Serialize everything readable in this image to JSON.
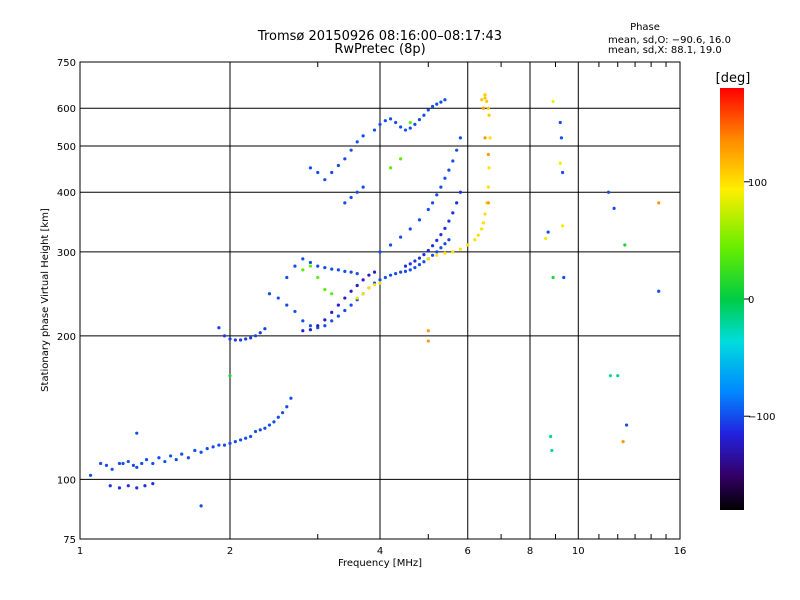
{
  "chart_data": {
    "type": "scatter",
    "title": "Tromsø 20150926 08:16:00–08:17:43",
    "subtitle": "RwPretec (8p)",
    "xlabel": "Frequency [MHz]",
    "ylabel": "Stationary phase Virtual Height [km]",
    "x_scale": "log",
    "y_scale": "log",
    "xlim": [
      1,
      16
    ],
    "ylim": [
      75,
      750
    ],
    "x_ticks": [
      1,
      2,
      4,
      6,
      8,
      10,
      16
    ],
    "y_ticks": [
      75,
      100,
      200,
      300,
      400,
      500,
      600,
      750
    ],
    "grid": true,
    "phase_info": {
      "heading": "Phase",
      "line1": "mean, sd,O: −90.6, 16.0",
      "line2": "mean, sd,X:  88.1, 19.0"
    },
    "colorbar": {
      "label": "[deg]",
      "range": [
        -180,
        180
      ],
      "ticks": [
        100,
        0,
        -100
      ],
      "tick_labels": [
        "100",
        "0",
        "−100"
      ]
    },
    "point_groups": [
      {
        "phase": -100,
        "x": [
          1.05,
          1.1,
          1.13,
          1.16,
          1.2,
          1.22,
          1.25,
          1.28,
          1.3,
          1.33,
          1.36,
          1.4,
          1.44,
          1.48,
          1.52,
          1.56,
          1.6,
          1.65,
          1.7,
          1.75,
          1.8,
          1.85,
          1.9,
          1.95,
          2.0,
          2.05,
          2.1,
          2.15,
          2.2,
          2.25,
          2.3,
          2.35,
          2.4,
          2.45,
          2.5,
          2.55,
          2.6,
          2.65
        ],
        "y": [
          102,
          108,
          107,
          105,
          108,
          108,
          109,
          107,
          106,
          108,
          110,
          108,
          111,
          109,
          112,
          110,
          113,
          111,
          115,
          114,
          116,
          117,
          118,
          118,
          119,
          120,
          121,
          122,
          123,
          126,
          127,
          128,
          130,
          132,
          135,
          138,
          142,
          148
        ]
      },
      {
        "phase": -110,
        "x": [
          1.15,
          1.2,
          1.25,
          1.3,
          1.35,
          1.4
        ],
        "y": [
          97,
          96,
          97,
          96,
          97,
          98
        ]
      },
      {
        "phase": -105,
        "x": [
          1.9,
          1.95,
          2.0,
          2.05,
          2.1,
          2.15,
          2.2,
          2.25,
          2.3,
          2.35
        ],
        "y": [
          208,
          200,
          197,
          196,
          196,
          197,
          198,
          200,
          203,
          207
        ]
      },
      {
        "phase": -100,
        "x": [
          2.4,
          2.5,
          2.6,
          2.7,
          2.8,
          2.9,
          3.0,
          3.1,
          3.2,
          3.3,
          3.4,
          3.5,
          3.6,
          3.7,
          3.8,
          3.9,
          4.0,
          4.1,
          4.2,
          4.3,
          4.4,
          4.5,
          4.6,
          4.7,
          4.8,
          4.9,
          5.0,
          5.1,
          5.2,
          5.3,
          5.4,
          5.5
        ],
        "y": [
          245,
          240,
          232,
          225,
          215,
          210,
          208,
          210,
          215,
          220,
          226,
          232,
          238,
          245,
          252,
          258,
          262,
          265,
          268,
          270,
          272,
          273,
          275,
          278,
          282,
          286,
          290,
          295,
          300,
          306,
          312,
          318
        ]
      },
      {
        "phase": -120,
        "x": [
          2.8,
          2.9,
          3.0,
          3.1,
          3.2,
          3.3,
          3.4,
          3.5,
          3.6,
          3.7,
          3.8,
          3.9
        ],
        "y": [
          205,
          206,
          210,
          216,
          224,
          232,
          240,
          248,
          255,
          262,
          268,
          272
        ]
      },
      {
        "phase": -100,
        "x": [
          2.6,
          2.7,
          2.8,
          2.9,
          3.0,
          3.1,
          3.2,
          3.3,
          3.4,
          3.5,
          3.6
        ],
        "y": [
          265,
          280,
          290,
          285,
          280,
          278,
          276,
          275,
          273,
          272,
          270
        ]
      },
      {
        "phase": -100,
        "x": [
          2.9,
          3.0,
          3.1,
          3.2,
          3.3,
          3.4,
          3.5,
          3.6,
          3.7
        ],
        "y": [
          450,
          440,
          425,
          440,
          455,
          470,
          490,
          510,
          525
        ]
      },
      {
        "phase": -100,
        "x": [
          3.4,
          3.5,
          3.6,
          3.7
        ],
        "y": [
          380,
          390,
          400,
          410
        ]
      },
      {
        "phase": -100,
        "x": [
          3.9,
          4.0,
          4.1,
          4.2,
          4.3,
          4.4,
          4.5,
          4.6,
          4.7,
          4.8,
          4.9,
          5.0,
          5.1,
          5.2,
          5.3,
          5.4
        ],
        "y": [
          540,
          555,
          565,
          570,
          560,
          548,
          540,
          545,
          555,
          568,
          580,
          595,
          605,
          612,
          618,
          625
        ]
      },
      {
        "phase": -100,
        "x": [
          4.0,
          4.2,
          4.4,
          4.6,
          4.8,
          5.0,
          5.1,
          5.2,
          5.3,
          5.4,
          5.5,
          5.6,
          5.7,
          5.8
        ],
        "y": [
          300,
          310,
          322,
          335,
          350,
          368,
          380,
          395,
          410,
          428,
          445,
          465,
          490,
          520
        ]
      },
      {
        "phase": -110,
        "x": [
          4.5,
          4.6,
          4.7,
          4.8,
          4.9,
          5.0,
          5.1,
          5.2,
          5.3,
          5.4,
          5.5,
          5.6,
          5.7,
          5.8
        ],
        "y": [
          280,
          283,
          287,
          291,
          296,
          302,
          309,
          317,
          326,
          336,
          348,
          362,
          380,
          400
        ]
      },
      {
        "phase": 100,
        "x": [
          5.0,
          5.2,
          5.4,
          5.6,
          5.8,
          6.0,
          6.2,
          6.3,
          6.4,
          6.45,
          6.5,
          6.55,
          6.6,
          6.62,
          6.65
        ],
        "y": [
          290,
          295,
          298,
          300,
          304,
          310,
          318,
          325,
          335,
          345,
          360,
          380,
          410,
          450,
          520
        ]
      },
      {
        "phase": 100,
        "x": [
          3.6,
          3.7,
          3.8,
          3.9,
          4.0
        ],
        "y": [
          240,
          245,
          252,
          256,
          258
        ]
      },
      {
        "phase": 40,
        "x": [
          3.0,
          3.1,
          3.2,
          4.2,
          4.4,
          4.6,
          2.8,
          2.9
        ],
        "y": [
          265,
          250,
          245,
          450,
          470,
          560,
          275,
          280
        ]
      },
      {
        "phase": 130,
        "x": [
          5.0,
          5.0,
          6.5,
          6.6,
          6.45,
          6.6,
          12.3,
          14.5
        ],
        "y": [
          205,
          195,
          520,
          480,
          600,
          380,
          120,
          380
        ]
      },
      {
        "phase": 110,
        "x": [
          6.5,
          6.55,
          6.6,
          6.62,
          6.4,
          6.5
        ],
        "y": [
          640,
          620,
          600,
          580,
          625,
          630
        ]
      },
      {
        "phase": 10,
        "x": [
          2.0,
          8.9,
          12.4
        ],
        "y": [
          165,
          265,
          310
        ]
      },
      {
        "phase": -20,
        "x": [
          8.8,
          8.85,
          11.6,
          12.0
        ],
        "y": [
          123,
          115,
          165,
          165
        ]
      },
      {
        "phase": -100,
        "x": [
          9.2,
          9.25,
          9.3,
          9.35,
          11.5,
          11.8,
          12.5,
          14.5,
          1.75,
          8.7,
          1.3
        ],
        "y": [
          560,
          520,
          440,
          265,
          400,
          370,
          130,
          248,
          88,
          330,
          125
        ]
      },
      {
        "phase": 90,
        "x": [
          8.9,
          9.2,
          9.3,
          8.6
        ],
        "y": [
          620,
          460,
          340,
          320
        ]
      }
    ]
  }
}
